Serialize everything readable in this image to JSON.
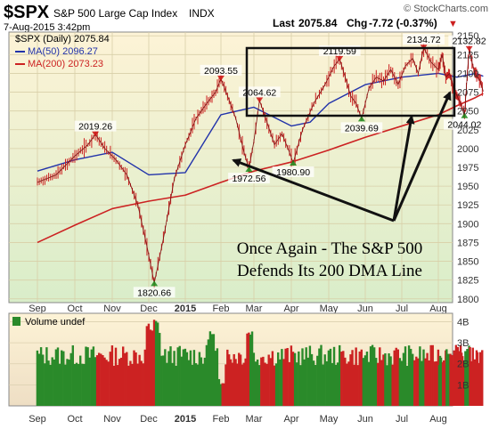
{
  "header": {
    "symbol": "$SPX",
    "name": "S&P 500 Large Cap Index",
    "exchange": "INDX",
    "credit": "© StockCharts.com",
    "datetime": "7-Aug-2015 3:42pm",
    "last_label": "Last",
    "last_value": "2075.84",
    "chg_label": "Chg",
    "chg_value": "-7.72 (-0.37%)",
    "chg_arrow": "▼"
  },
  "legend": {
    "price": "$SPX (Daily) 2075.84",
    "ma50": "MA(50) 2096.27",
    "ma200": "MA(200) 2073.23"
  },
  "annotation": {
    "line1": "Once Again - The S&P 500",
    "line2": "Defends Its 200 DMA Line"
  },
  "volume_panel": {
    "label": "Volume undef"
  },
  "colors": {
    "price_bg_top": "#fdf3d6",
    "price_bg_bottom": "#d9edc9",
    "volume_bg": "#f6ecd3",
    "candle": "#cc1f1f",
    "ma50": "#2233aa",
    "ma200": "#cc2222",
    "volume_up": "#2a8a2a",
    "volume_down": "#cc2222",
    "marker_up": "#1a8a1a",
    "marker_down": "#cc1111"
  },
  "chart_data": {
    "type": "line",
    "title": "$SPX S&P 500 Large Cap Index INDX",
    "x_tick_labels": [
      "Sep",
      "Oct",
      "Nov",
      "Dec",
      "2015",
      "Feb",
      "Mar",
      "Apr",
      "May",
      "Jun",
      "Jul",
      "Aug"
    ],
    "y_tick_labels": [
      "1800",
      "1825",
      "1850",
      "1875",
      "1900",
      "1925",
      "1950",
      "1975",
      "2000",
      "2025",
      "2050",
      "2075",
      "2100",
      "2125",
      "2150"
    ],
    "ylim": [
      1795,
      2155
    ],
    "volume_tick_labels": [
      "1B",
      "2B",
      "3B",
      "4B"
    ],
    "volume_ylim": [
      0,
      4.4
    ],
    "price_labels": [
      {
        "text": "2019.26",
        "x": 1.55,
        "y": 2019.26
      },
      {
        "text": "1820.66",
        "x": 3.15,
        "y": 1820.66
      },
      {
        "text": "2093.55",
        "x": 5.0,
        "y": 2093.55
      },
      {
        "text": "2064.62",
        "x": 6.15,
        "y": 2064.62
      },
      {
        "text": "1972.56",
        "x": 5.85,
        "y": 1972.56
      },
      {
        "text": "1980.90",
        "x": 7.05,
        "y": 1980.9
      },
      {
        "text": "2119.59",
        "x": 8.3,
        "y": 2119.59
      },
      {
        "text": "2039.69",
        "x": 8.9,
        "y": 2039.69
      },
      {
        "text": "2134.72",
        "x": 10.6,
        "y": 2134.72
      },
      {
        "text": "2132.82",
        "x": 12.65,
        "y": 2132.82
      },
      {
        "text": "2044.02",
        "x": 12.4,
        "y": 2044.02
      }
    ],
    "series": [
      {
        "name": "$SPX",
        "x": [
          0.0,
          0.5,
          1.0,
          1.35,
          1.55,
          1.8,
          2.1,
          2.4,
          2.7,
          2.95,
          3.15,
          3.4,
          3.7,
          4.0,
          4.3,
          4.6,
          4.85,
          5.0,
          5.2,
          5.45,
          5.7,
          5.85,
          6.0,
          6.15,
          6.35,
          6.55,
          6.75,
          6.95,
          7.05,
          7.3,
          7.6,
          7.9,
          8.15,
          8.3,
          8.45,
          8.6,
          8.75,
          8.9,
          9.1,
          9.3,
          9.5,
          9.7,
          9.9,
          10.1,
          10.3,
          10.45,
          10.6,
          10.8,
          11.0,
          11.2,
          11.4,
          11.6,
          11.8,
          12.0,
          12.2,
          12.4,
          12.55,
          12.65,
          12.8,
          12.95,
          13.1,
          13.25,
          13.4
        ],
        "values": [
          1955,
          1965,
          1990,
          2005,
          2019,
          2000,
          1985,
          1965,
          1925,
          1870,
          1821,
          1880,
          1960,
          2005,
          2040,
          2060,
          2075,
          2093,
          2070,
          2040,
          1995,
          1973,
          2010,
          2064,
          2035,
          2005,
          2020,
          1995,
          1981,
          2025,
          2060,
          2085,
          2110,
          2119,
          2095,
          2070,
          2060,
          2040,
          2080,
          2095,
          2090,
          2105,
          2085,
          2110,
          2120,
          2100,
          2134,
          2115,
          2105,
          2125,
          2095,
          2100,
          2080,
          2070,
          2060,
          2044,
          2100,
          2132,
          2115,
          2100,
          2095,
          2090,
          2076
        ]
      },
      {
        "name": "MA(50)",
        "x": [
          0.0,
          1.0,
          2.0,
          3.0,
          4.0,
          5.0,
          6.0,
          7.0,
          7.5,
          8.0,
          9.0,
          10.0,
          11.0,
          12.0,
          13.0,
          13.4
        ],
        "values": [
          1970,
          1985,
          1995,
          1965,
          1968,
          2045,
          2055,
          2030,
          2035,
          2060,
          2085,
          2095,
          2100,
          2095,
          2100,
          2096.27
        ]
      },
      {
        "name": "MA(200)",
        "x": [
          0.0,
          1.0,
          2.0,
          3.0,
          4.0,
          5.0,
          6.0,
          7.0,
          8.0,
          9.0,
          10.0,
          11.0,
          12.0,
          13.0,
          13.4
        ],
        "values": [
          1875,
          1898,
          1920,
          1930,
          1938,
          1955,
          1970,
          1982,
          1998,
          2015,
          2030,
          2045,
          2057,
          2068,
          2073.23
        ]
      }
    ]
  }
}
